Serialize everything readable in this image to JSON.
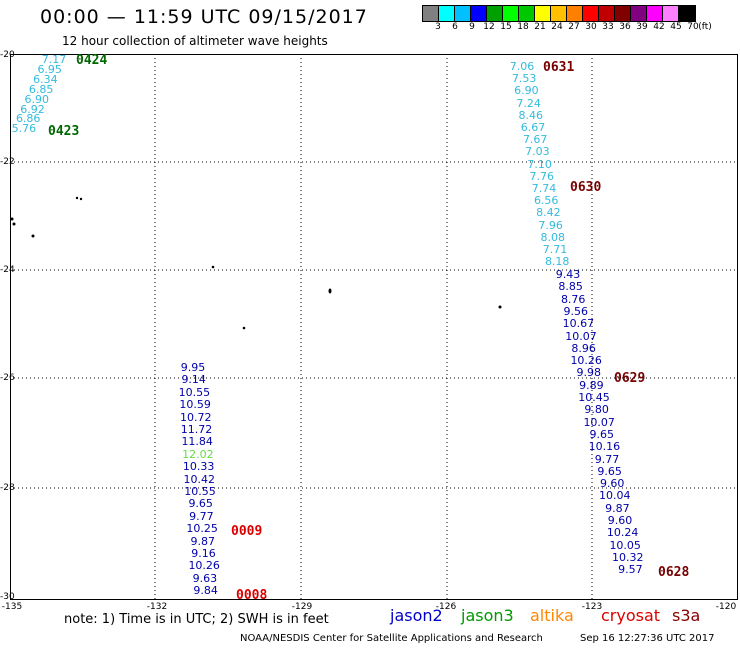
{
  "header": {
    "title": "00:00 — 11:59 UTC 09/15/2017",
    "subtitle": "12 hour collection of altimeter wave heights"
  },
  "legend": {
    "colors": [
      "#808080",
      "#00ffff",
      "#00c0ff",
      "#0000ff",
      "#00a000",
      "#00ff00",
      "#00c800",
      "#ffff00",
      "#ffc000",
      "#ff8000",
      "#ff0000",
      "#c00000",
      "#800000",
      "#800080",
      "#ff00ff",
      "#ff80ff",
      "#000000"
    ],
    "labels": [
      "3",
      "6",
      "9",
      "12",
      "15",
      "18",
      "21",
      "24",
      "27",
      "30",
      "33",
      "36",
      "39",
      "42",
      "45",
      "70",
      "(ft)"
    ]
  },
  "axes": {
    "ylabels": [
      "-20",
      "-22",
      "-24",
      "-26",
      "-28",
      "-30"
    ],
    "xlabels": [
      "-135",
      "-132",
      "-129",
      "-126",
      "-123",
      "-120"
    ]
  },
  "tracks": [
    {
      "name": "track-0423",
      "color": "#33bbdd",
      "values": [
        "7.17",
        "6.95",
        "6.34",
        "6.85",
        "6.90",
        "6.92",
        "6.86",
        "5.76"
      ]
    },
    {
      "name": "track-0631",
      "color": "#33bbdd",
      "values": [
        "7.06",
        "7.53",
        "6.90",
        "7.24",
        "8.46",
        "6.67",
        "7.67",
        "7.03",
        "7.10",
        "7.76",
        "7.74",
        "6.56",
        "8.42",
        "7.96",
        "8.08",
        "7.71",
        "8.18"
      ]
    },
    {
      "name": "track-0629",
      "color": "#0000aa",
      "values": [
        "9.43",
        "8.85",
        "8.76",
        "9.56",
        "10.67",
        "10.07",
        "8.96",
        "10.26",
        "9.98",
        "9.89",
        "10.45",
        "9.80",
        "10.07",
        "9.65",
        "10.16",
        "9.77",
        "9.65",
        "9.60",
        "10.04",
        "9.87",
        "9.60",
        "10.24",
        "10.05",
        "10.32",
        "9.57"
      ]
    },
    {
      "name": "track-0009",
      "color": "#0000aa",
      "values": [
        "9.95",
        "9.14",
        "10.55",
        "10.59",
        "10.72",
        "11.72",
        "11.84",
        "12.02",
        "10.33",
        "10.42",
        "10.55",
        "9.65",
        "9.77",
        "10.25",
        "9.87",
        "9.16",
        "10.26",
        "9.63",
        "9.84"
      ]
    }
  ],
  "time_labels": {
    "t0424": "0424",
    "t0423": "0423",
    "t0631": "0631",
    "t0630": "0630",
    "t0629": "0629",
    "t0628": "0628",
    "t0009": "0009",
    "t0008": "0008"
  },
  "note": "note: 1) Time is in UTC; 2) SWH is in feet",
  "satellites": [
    {
      "label": "jason2",
      "color": "#0000cc"
    },
    {
      "label": "jason3",
      "color": "#009900"
    },
    {
      "label": "altika",
      "color": "#ff8800"
    },
    {
      "label": "cryosat",
      "color": "#dd0000"
    },
    {
      "label": "s3a",
      "color": "#880000"
    }
  ],
  "footer": {
    "agency": "NOAA/NESDIS Center for Satellite Applications and Research",
    "timestamp": "Sep 16 12:27:36 UTC 2017"
  }
}
